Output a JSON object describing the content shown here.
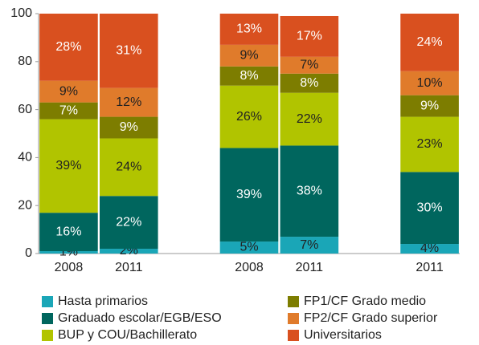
{
  "chart_data": {
    "type": "stacked_bar",
    "categories": [
      "2008",
      "2011",
      null,
      "2008",
      "2011",
      null,
      "2011"
    ],
    "series": [
      {
        "name": "Hasta primarios",
        "color": "#1aa6b7",
        "values": [
          1,
          2,
          null,
          5,
          7,
          null,
          4
        ],
        "value_labels": [
          "1%",
          "2%",
          null,
          "5%",
          "7%",
          null,
          "4%"
        ]
      },
      {
        "name": "Graduado escolar/EGB/ESO",
        "color": "#00665e",
        "values": [
          16,
          22,
          null,
          39,
          38,
          null,
          30
        ],
        "value_labels": [
          "16%",
          "22%",
          null,
          "39%",
          "38%",
          null,
          "30%"
        ]
      },
      {
        "name": "BUP y COU/Bachillerato",
        "color": "#b1c400",
        "values": [
          39,
          24,
          null,
          26,
          22,
          null,
          23
        ],
        "value_labels": [
          "39%",
          "24%",
          null,
          "26%",
          "22%",
          null,
          "23%"
        ]
      },
      {
        "name": "FP1/CF Grado medio",
        "color": "#7d7d00",
        "values": [
          7,
          9,
          null,
          8,
          8,
          null,
          9
        ],
        "value_labels": [
          "7%",
          "9%",
          null,
          "8%",
          "8%",
          null,
          "9%"
        ]
      },
      {
        "name": "FP2/CF Grado superior",
        "color": "#e07b2b",
        "values": [
          9,
          12,
          null,
          9,
          7,
          null,
          10
        ],
        "value_labels": [
          "9%",
          "12%",
          null,
          "9%",
          "7%",
          null,
          "10%"
        ]
      },
      {
        "name": "Universitarios",
        "color": "#d9501f",
        "values": [
          28,
          31,
          null,
          13,
          17,
          null,
          24
        ],
        "value_labels": [
          "28%",
          "31%",
          null,
          "13%",
          "17%",
          null,
          "24%"
        ]
      }
    ],
    "ylim": [
      0,
      100
    ],
    "yticks": [
      0,
      20,
      40,
      60,
      80,
      100
    ]
  }
}
